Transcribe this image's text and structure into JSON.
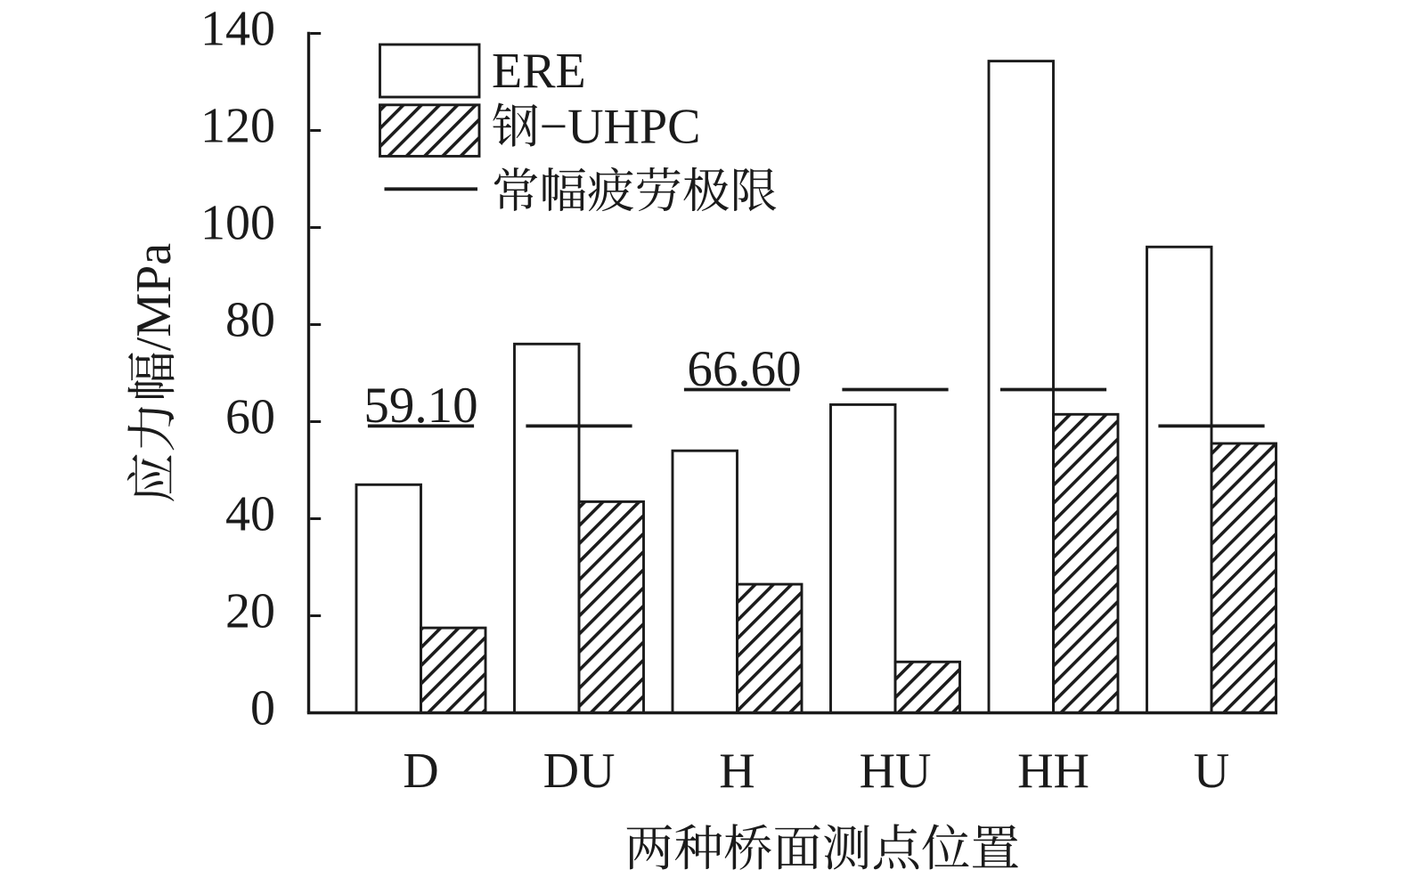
{
  "figure": {
    "background": "#ffffff",
    "ink_color": "#1b1b1b"
  },
  "chart_data": {
    "type": "bar",
    "title": "",
    "categories": [
      "D",
      "DU",
      "H",
      "HU",
      "HH",
      "U"
    ],
    "series": [
      {
        "name": "ERE",
        "style": "open",
        "values": [
          47,
          76,
          54,
          63.5,
          134.3,
          96
        ]
      },
      {
        "name": "钢−UHPC",
        "style": "hatched",
        "values": [
          17.5,
          43.5,
          26.5,
          10.5,
          61.5,
          55.5
        ]
      }
    ],
    "limit_line_series": {
      "name": "常幅疲劳极限",
      "values": [
        59.1,
        59.1,
        66.6,
        66.6,
        66.6,
        59.1
      ]
    },
    "annotations": [
      {
        "text": "59.10",
        "category": "D"
      },
      {
        "text": "66.60",
        "category": "H"
      }
    ],
    "xlabel": "两种桥面测点位置",
    "ylabel": "应力幅/MPa",
    "ylim": [
      0,
      140
    ],
    "yticks": [
      0,
      20,
      40,
      60,
      80,
      100,
      120,
      140
    ],
    "grid": false,
    "legend_position": "upper-left-inside",
    "legend": [
      {
        "label": "ERE",
        "swatch": "open-rect"
      },
      {
        "label": "钢−UHPC",
        "swatch": "hatched-rect"
      },
      {
        "label": "常幅疲劳极限",
        "swatch": "line"
      }
    ]
  }
}
